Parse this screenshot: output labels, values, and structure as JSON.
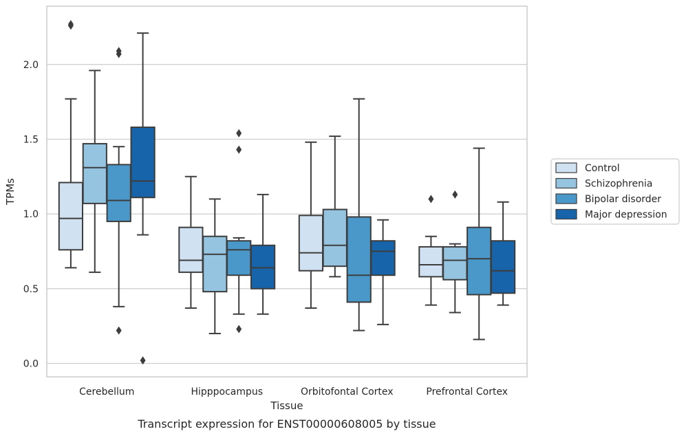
{
  "chart_data": {
    "type": "box",
    "caption": "Transcript expression for ENST00000608005 by tissue",
    "xlabel": "Tissue",
    "ylabel": "TPMs",
    "ylim": [
      -0.09,
      2.39
    ],
    "yticks": [
      "0.0",
      "0.5",
      "1.0",
      "1.5",
      "2.0"
    ],
    "grid": "horizontal",
    "legend_placement": "right",
    "categories": [
      "Cerebellum",
      "Hipppocampus",
      "Orbitofontal Cortex",
      "Prefrontal Cortex"
    ],
    "series": [
      {
        "name": "Control",
        "color": "#d0e1f2",
        "boxes": [
          {
            "whislo": 0.64,
            "q1": 0.76,
            "med": 0.97,
            "q3": 1.21,
            "whishi": 1.77,
            "fliers": [
              2.26,
              2.27
            ]
          },
          {
            "whislo": 0.37,
            "q1": 0.61,
            "med": 0.69,
            "q3": 0.91,
            "whishi": 1.25,
            "fliers": []
          },
          {
            "whislo": 0.37,
            "q1": 0.62,
            "med": 0.74,
            "q3": 0.99,
            "whishi": 1.48,
            "fliers": []
          },
          {
            "whislo": 0.39,
            "q1": 0.58,
            "med": 0.66,
            "q3": 0.78,
            "whishi": 0.85,
            "fliers": [
              1.1
            ]
          }
        ]
      },
      {
        "name": "Schizophrenia",
        "color": "#94c4df",
        "boxes": [
          {
            "whislo": 0.61,
            "q1": 1.07,
            "med": 1.31,
            "q3": 1.47,
            "whishi": 1.96,
            "fliers": []
          },
          {
            "whislo": 0.2,
            "q1": 0.48,
            "med": 0.73,
            "q3": 0.85,
            "whishi": 1.1,
            "fliers": []
          },
          {
            "whislo": 0.58,
            "q1": 0.65,
            "med": 0.79,
            "q3": 1.03,
            "whishi": 1.52,
            "fliers": []
          },
          {
            "whislo": 0.34,
            "q1": 0.56,
            "med": 0.69,
            "q3": 0.78,
            "whishi": 0.8,
            "fliers": [
              1.13
            ]
          }
        ]
      },
      {
        "name": "Bipolar disorder",
        "color": "#4a98c9",
        "boxes": [
          {
            "whislo": 0.38,
            "q1": 0.95,
            "med": 1.09,
            "q3": 1.33,
            "whishi": 1.45,
            "fliers": [
              0.22,
              2.07,
              2.09
            ]
          },
          {
            "whislo": 0.33,
            "q1": 0.59,
            "med": 0.76,
            "q3": 0.82,
            "whishi": 0.84,
            "fliers": [
              0.23,
              1.43,
              1.54
            ]
          },
          {
            "whislo": 0.22,
            "q1": 0.41,
            "med": 0.59,
            "q3": 0.98,
            "whishi": 1.77,
            "fliers": []
          },
          {
            "whislo": 0.16,
            "q1": 0.46,
            "med": 0.7,
            "q3": 0.91,
            "whishi": 1.44,
            "fliers": []
          }
        ]
      },
      {
        "name": "Major depression",
        "color": "#1764ab",
        "boxes": [
          {
            "whislo": 0.86,
            "q1": 1.11,
            "med": 1.22,
            "q3": 1.58,
            "whishi": 2.21,
            "fliers": [
              0.02
            ]
          },
          {
            "whislo": 0.33,
            "q1": 0.5,
            "med": 0.64,
            "q3": 0.79,
            "whishi": 1.13,
            "fliers": []
          },
          {
            "whislo": 0.26,
            "q1": 0.59,
            "med": 0.75,
            "q3": 0.82,
            "whishi": 0.96,
            "fliers": []
          },
          {
            "whislo": 0.39,
            "q1": 0.47,
            "med": 0.62,
            "q3": 0.82,
            "whishi": 1.08,
            "fliers": []
          }
        ]
      }
    ]
  }
}
